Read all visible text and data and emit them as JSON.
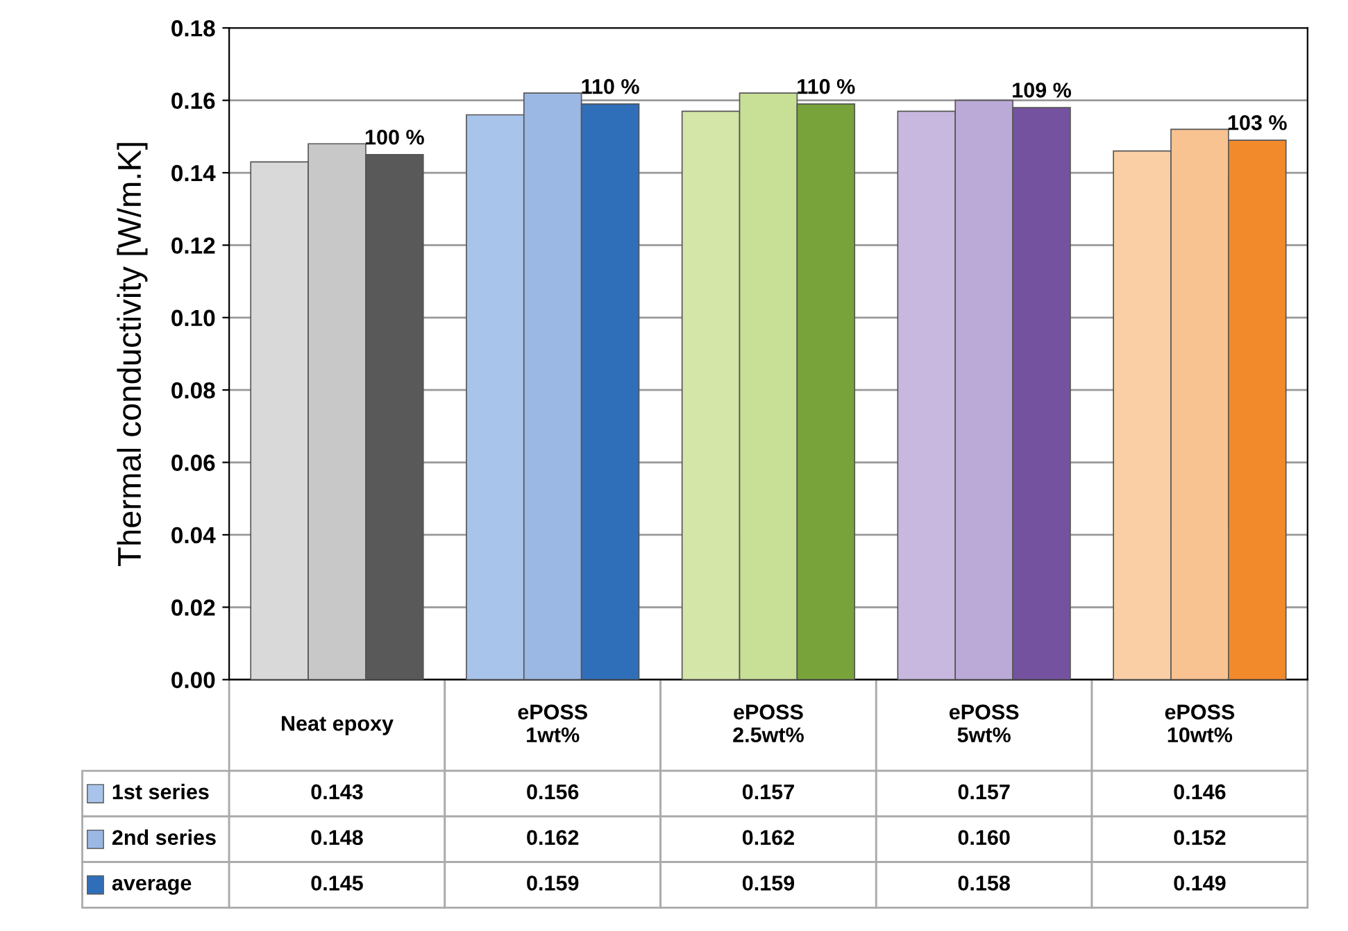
{
  "chart_data": {
    "type": "bar",
    "ylabel": "Thermal conductivity [W/m.K]",
    "categories": [
      "Neat epoxy",
      "ePOSS\n1wt%",
      "ePOSS\n2.5wt%",
      "ePOSS\n5wt%",
      "ePOSS\n10wt%"
    ],
    "series": [
      {
        "name": "1st series",
        "colors": [
          "#d9d9d9",
          "#a9c4ea",
          "#d4e6a8",
          "#c8b8e0",
          "#fbcfa6"
        ],
        "values": [
          0.143,
          0.156,
          0.157,
          0.157,
          0.146
        ],
        "value_labels": [
          "0.143",
          "0.156",
          "0.157",
          "0.157",
          "0.146"
        ]
      },
      {
        "name": "2nd series",
        "colors": [
          "#c8c8c8",
          "#9bb8e4",
          "#c8df96",
          "#bba9d8",
          "#f9c291"
        ],
        "values": [
          0.148,
          0.162,
          0.162,
          0.16,
          0.152
        ],
        "value_labels": [
          "0.148",
          "0.162",
          "0.162",
          "0.160",
          "0.152"
        ]
      },
      {
        "name": "average",
        "colors": [
          "#595959",
          "#2f6fba",
          "#78a33a",
          "#7552a0",
          "#f28a2c"
        ],
        "values": [
          0.145,
          0.159,
          0.159,
          0.158,
          0.149
        ],
        "value_labels": [
          "0.145",
          "0.159",
          "0.159",
          "0.158",
          "0.149"
        ]
      }
    ],
    "ylim": [
      0,
      0.18
    ],
    "yticks": [
      {
        "value": 0,
        "label": "0.00"
      },
      {
        "value": 0.02,
        "label": "0.02"
      },
      {
        "value": 0.04,
        "label": "0.04"
      },
      {
        "value": 0.06,
        "label": "0.06"
      },
      {
        "value": 0.08,
        "label": "0.08"
      },
      {
        "value": 0.1,
        "label": "0.10"
      },
      {
        "value": 0.12,
        "label": "0.12"
      },
      {
        "value": 0.14,
        "label": "0.14"
      },
      {
        "value": 0.16,
        "label": "0.16"
      },
      {
        "value": 0.18,
        "label": "0.18"
      }
    ],
    "grid": "y",
    "legend": "bottom left",
    "annotations": [
      "100 %",
      "110 %",
      "110 %",
      "109 %",
      "103 %"
    ]
  }
}
